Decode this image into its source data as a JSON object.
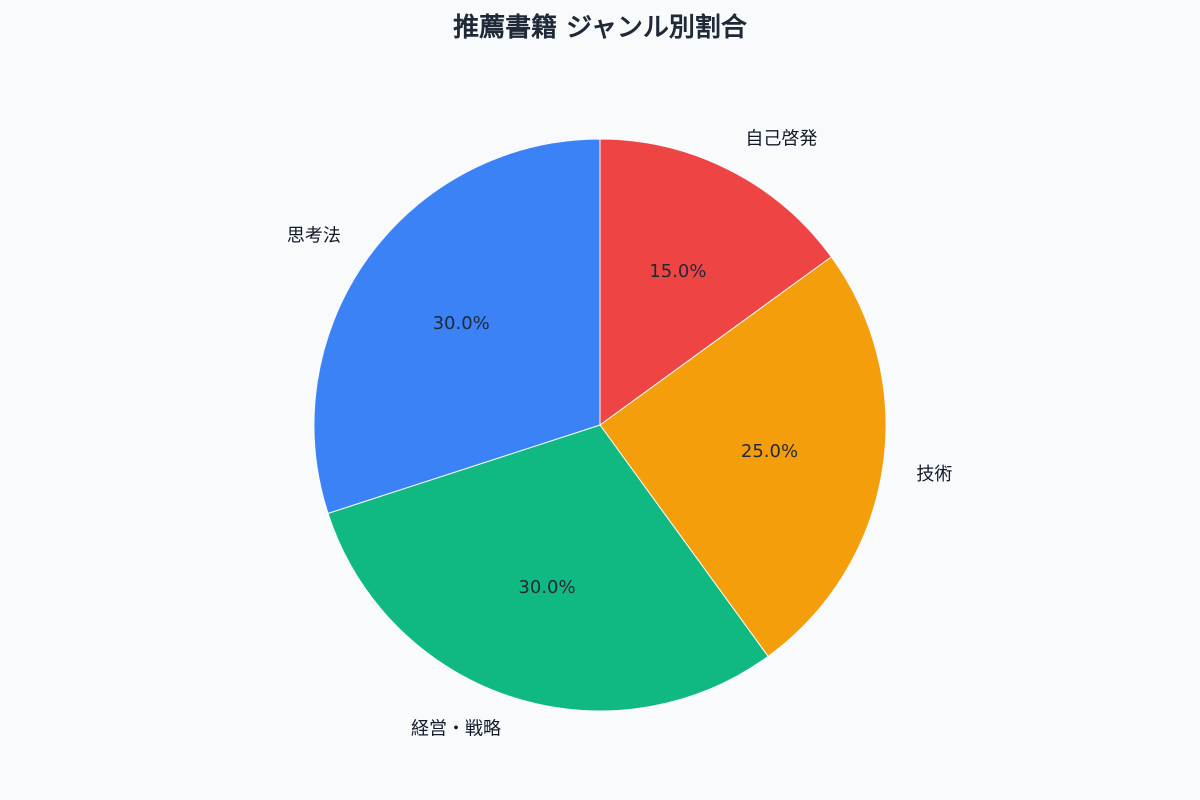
{
  "chart_data": {
    "type": "pie",
    "title": "推薦書籍 ジャンル別割合",
    "start_angle_deg": 90,
    "direction": "clockwise",
    "slices": [
      {
        "label": "自己啓発",
        "value": 15.0,
        "percent_label": "15.0%",
        "color": "#ef4444"
      },
      {
        "label": "技術",
        "value": 25.0,
        "percent_label": "25.0%",
        "color": "#f59e0b"
      },
      {
        "label": "経営・戦略",
        "value": 30.0,
        "percent_label": "30.0%",
        "color": "#10b981"
      },
      {
        "label": "思考法",
        "value": 30.0,
        "percent_label": "30.0%",
        "color": "#3b82f6"
      }
    ]
  }
}
